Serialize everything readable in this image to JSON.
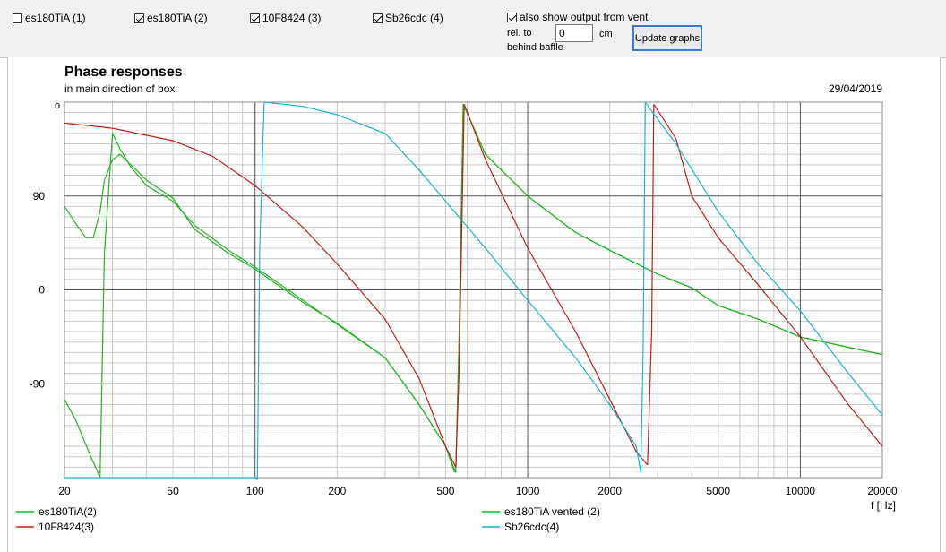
{
  "toolbar": {
    "checkboxes": [
      {
        "label": "es180TiA (1)",
        "checked": false
      },
      {
        "label": "es180TiA (2)",
        "checked": true
      },
      {
        "label": "10F8424 (3)",
        "checked": true
      },
      {
        "label": "Sb26cdc (4)",
        "checked": true
      }
    ],
    "vent": {
      "label": "also show output from vent",
      "checked": true
    },
    "rel_to_label": "rel. to",
    "behind_baffle_label": "behind baffle",
    "offset_value": "0",
    "unit_label": "cm",
    "update_button": "Update graphs"
  },
  "chart_data": {
    "type": "line",
    "title": "Phase responses",
    "subtitle": "in main direction of box",
    "date": "29/04/2019",
    "unit_corner": "o",
    "xlabel": "f [Hz]",
    "xscale": "log",
    "xlim": [
      20,
      20000
    ],
    "ylim": [
      -180,
      180
    ],
    "x_ticks": [
      20,
      50,
      100,
      200,
      500,
      1000,
      2000,
      5000,
      10000,
      20000
    ],
    "x_tick_labels": [
      "20",
      "50",
      "100",
      "200",
      "500",
      "1000",
      "2000",
      "5000",
      "10000",
      "20000"
    ],
    "y_ticks": [
      90,
      0,
      -90
    ],
    "y_tick_labels": [
      "90",
      "0",
      "-90"
    ],
    "grid": true,
    "series": [
      {
        "name": "es180TiA(2)",
        "color": "#22b422",
        "segments": [
          [
            [
              20,
              80
            ],
            [
              23,
              56
            ],
            [
              24,
              50
            ],
            [
              25.5,
              50
            ],
            [
              27,
              75
            ],
            [
              28,
              105
            ],
            [
              30,
              125
            ],
            [
              32,
              130
            ],
            [
              35,
              120
            ],
            [
              40,
              105
            ],
            [
              50,
              88
            ],
            [
              60,
              58
            ],
            [
              80,
              35
            ],
            [
              100,
              20
            ],
            [
              150,
              -12
            ],
            [
              200,
              -32
            ],
            [
              300,
              -65
            ],
            [
              400,
              -110
            ],
            [
              500,
              -150
            ],
            [
              540,
              -175
            ]
          ],
          [
            [
              545,
              -175
            ],
            [
              560,
              -50
            ],
            [
              580,
              178
            ]
          ],
          [
            [
              580,
              178
            ],
            [
              700,
              130
            ],
            [
              1000,
              90
            ],
            [
              1500,
              55
            ],
            [
              2000,
              38
            ],
            [
              3000,
              15
            ],
            [
              4000,
              2
            ],
            [
              5000,
              -15
            ],
            [
              7000,
              -28
            ],
            [
              10000,
              -45
            ],
            [
              15000,
              -55
            ],
            [
              20000,
              -62
            ]
          ]
        ]
      },
      {
        "name": "es180TiA vented (2)",
        "color": "#22b422",
        "segments": [
          [
            [
              20,
              -105
            ],
            [
              22,
              -125
            ],
            [
              25,
              -160
            ],
            [
              27,
              -180
            ]
          ],
          [
            [
              27,
              -180
            ],
            [
              28,
              35
            ],
            [
              30,
              150
            ],
            [
              32,
              135
            ],
            [
              35,
              118
            ],
            [
              40,
              100
            ],
            [
              50,
              85
            ],
            [
              60,
              62
            ],
            [
              80,
              38
            ],
            [
              100,
              22
            ],
            [
              150,
              -10
            ],
            [
              200,
              -33
            ],
            [
              300,
              -65
            ],
            [
              400,
              -110
            ],
            [
              500,
              -150
            ],
            [
              545,
              -175
            ]
          ],
          [
            [
              545,
              -175
            ],
            [
              560,
              -50
            ],
            [
              580,
              178
            ]
          ],
          [
            [
              580,
              178
            ],
            [
              700,
              130
            ],
            [
              1000,
              90
            ],
            [
              1500,
              55
            ],
            [
              2000,
              38
            ],
            [
              3000,
              15
            ],
            [
              4000,
              2
            ],
            [
              5000,
              -15
            ],
            [
              7000,
              -28
            ],
            [
              10000,
              -45
            ],
            [
              15000,
              -55
            ],
            [
              20000,
              -62
            ]
          ]
        ]
      },
      {
        "name": "10F8424(3)",
        "color": "#c0201a",
        "segments": [
          [
            [
              20,
              160
            ],
            [
              30,
              155
            ],
            [
              50,
              143
            ],
            [
              70,
              128
            ],
            [
              100,
              100
            ],
            [
              150,
              60
            ],
            [
              200,
              25
            ],
            [
              300,
              -28
            ],
            [
              400,
              -85
            ],
            [
              500,
              -150
            ],
            [
              545,
              -170
            ]
          ],
          [
            [
              545,
              -170
            ],
            [
              560,
              -80
            ],
            [
              585,
              178
            ]
          ],
          [
            [
              585,
              178
            ],
            [
              700,
              125
            ],
            [
              1000,
              40
            ],
            [
              1500,
              -40
            ],
            [
              2000,
              -105
            ],
            [
              2500,
              -155
            ],
            [
              2750,
              -168
            ]
          ],
          [
            [
              2750,
              -168
            ],
            [
              2850,
              -40
            ],
            [
              2900,
              178
            ]
          ],
          [
            [
              2900,
              178
            ],
            [
              3500,
              145
            ],
            [
              4000,
              90
            ],
            [
              5000,
              50
            ],
            [
              7000,
              5
            ],
            [
              10000,
              -45
            ],
            [
              15000,
              -110
            ],
            [
              20000,
              -150
            ]
          ]
        ]
      },
      {
        "name": "Sb26cdc(4)",
        "color": "#1ab4cc",
        "segments": [
          [
            [
              20,
              -180
            ],
            [
              100,
              -180
            ],
            [
              102,
              -182
            ]
          ],
          [
            [
              102,
              -182
            ],
            [
              104,
              40
            ],
            [
              108,
              180
            ]
          ],
          [
            [
              108,
              180
            ],
            [
              150,
              176
            ],
            [
              200,
              168
            ],
            [
              300,
              150
            ],
            [
              400,
              115
            ],
            [
              500,
              85
            ],
            [
              700,
              40
            ],
            [
              1000,
              -10
            ],
            [
              1500,
              -65
            ],
            [
              2000,
              -110
            ],
            [
              2500,
              -150
            ],
            [
              2600,
              -175
            ]
          ],
          [
            [
              2600,
              -175
            ],
            [
              2650,
              -60
            ],
            [
              2700,
              180
            ]
          ],
          [
            [
              2700,
              180
            ],
            [
              3500,
              140
            ],
            [
              5000,
              75
            ],
            [
              7000,
              25
            ],
            [
              10000,
              -20
            ],
            [
              15000,
              -80
            ],
            [
              20000,
              -120
            ]
          ]
        ]
      }
    ]
  }
}
